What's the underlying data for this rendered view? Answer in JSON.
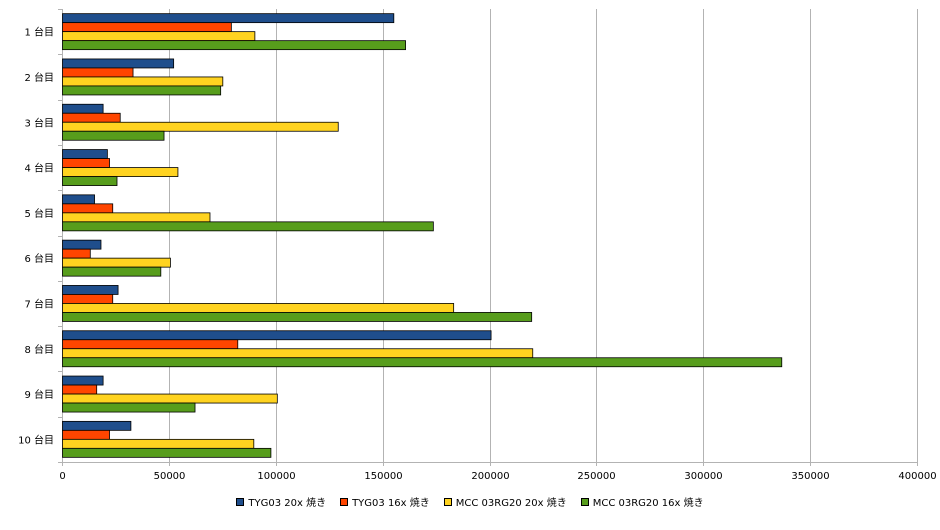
{
  "chart_data": {
    "type": "bar",
    "orientation": "horizontal",
    "title": "",
    "xlabel": "",
    "ylabel": "",
    "xlim": [
      0,
      400000
    ],
    "x_ticks": [
      0,
      50000,
      100000,
      150000,
      200000,
      250000,
      300000,
      350000,
      400000
    ],
    "grid": true,
    "legend_position": "bottom",
    "categories": [
      "1 台目",
      "2 台目",
      "3 台目",
      "4 台目",
      "5 台目",
      "6 台目",
      "7 台目",
      "8 台目",
      "9 台目",
      "10 台目"
    ],
    "series": [
      {
        "name": "TYG03 20x 焼き",
        "color": "#1f4e8c",
        "values": [
          155000,
          52000,
          19000,
          21000,
          15000,
          18000,
          26000,
          200500,
          19000,
          32000
        ]
      },
      {
        "name": "TYG03 16x 焼き",
        "color": "#ff4500",
        "values": [
          79000,
          33000,
          27000,
          22000,
          23500,
          13000,
          23500,
          82000,
          16000,
          22000
        ]
      },
      {
        "name": "MCC 03RG20 20x 焼き",
        "color": "#ffd320",
        "values": [
          90000,
          75000,
          129000,
          54000,
          69000,
          50500,
          183000,
          220000,
          100500,
          89500
        ]
      },
      {
        "name": "MCC 03RG20 16x 焼き",
        "color": "#579d1c",
        "values": [
          160500,
          74000,
          47500,
          25500,
          173500,
          46000,
          219500,
          336500,
          62000,
          97500
        ]
      }
    ]
  }
}
